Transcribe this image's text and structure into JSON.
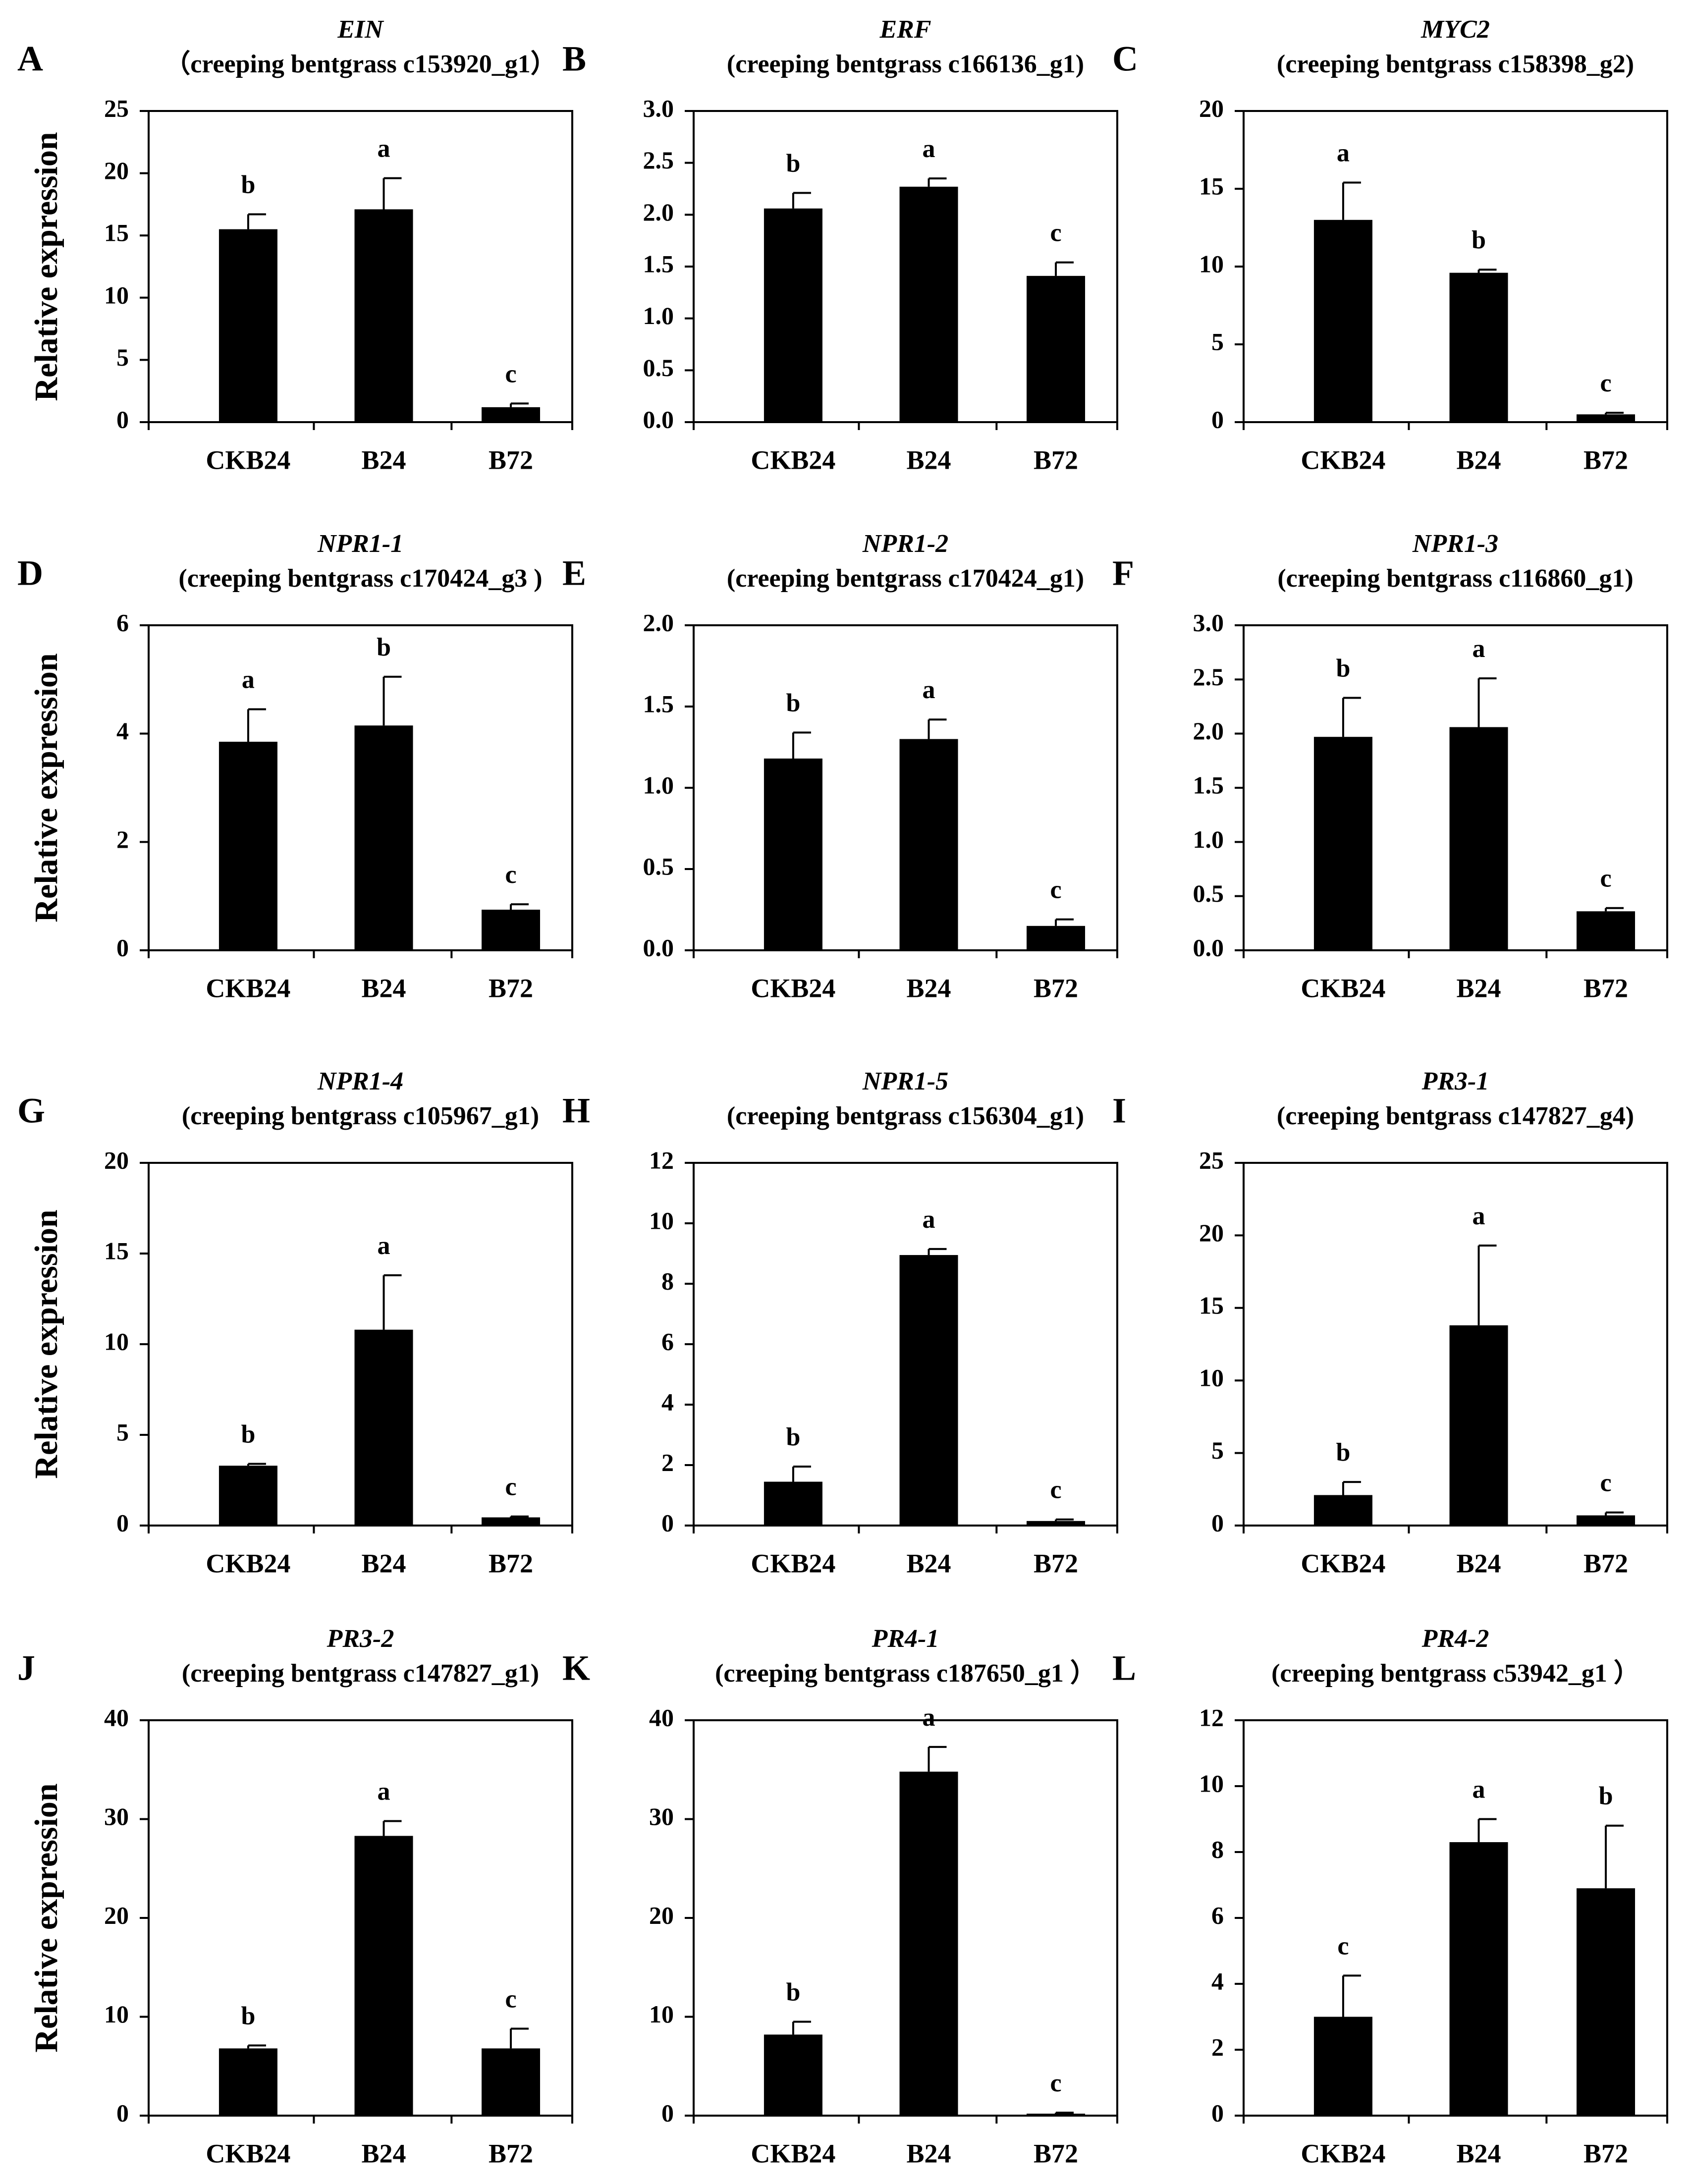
{
  "figure": {
    "ylabel": "Relative expression",
    "categories": [
      "CKB24",
      "B24",
      "B72"
    ]
  },
  "chart_data": [
    {
      "type": "bar",
      "panel": "A",
      "gene": "EIN",
      "title": "（creeping bentgrass c153920_g1）",
      "categories": [
        "CKB24",
        "B24",
        "B72"
      ],
      "values": [
        15.5,
        17.1,
        1.2
      ],
      "errors": [
        1.2,
        2.5,
        0.3
      ],
      "letters": [
        "b",
        "a",
        "c"
      ],
      "ylim": [
        0,
        25
      ],
      "yticks": [
        0,
        5,
        10,
        15,
        20,
        25
      ],
      "tick_format": "0"
    },
    {
      "type": "bar",
      "panel": "B",
      "gene": "ERF",
      "title": "(creeping bentgrass c166136_g1)",
      "categories": [
        "CKB24",
        "B24",
        "B72"
      ],
      "values": [
        2.06,
        2.27,
        1.41
      ],
      "errors": [
        0.15,
        0.08,
        0.13
      ],
      "letters": [
        "b",
        "a",
        "c"
      ],
      "ylim": [
        0,
        3
      ],
      "yticks": [
        0,
        0.5,
        1.0,
        1.5,
        2.0,
        2.5,
        3.0
      ],
      "tick_format": "0.0"
    },
    {
      "type": "bar",
      "panel": "C",
      "gene": "MYC2",
      "title": "(creeping bentgrass c158398_g2)",
      "categories": [
        "CKB24",
        "B24",
        "B72"
      ],
      "values": [
        13.0,
        9.6,
        0.5
      ],
      "errors": [
        2.4,
        0.2,
        0.1
      ],
      "letters": [
        "a",
        "b",
        "c"
      ],
      "ylim": [
        0,
        20
      ],
      "yticks": [
        0,
        5,
        10,
        15,
        20
      ],
      "tick_format": "0"
    },
    {
      "type": "bar",
      "panel": "D",
      "gene": "NPR1-1",
      "title": "(creeping bentgrass c170424_g3 )",
      "categories": [
        "CKB24",
        "B24",
        "B72"
      ],
      "values": [
        3.85,
        4.15,
        0.75
      ],
      "errors": [
        0.6,
        0.9,
        0.1
      ],
      "letters": [
        "a",
        "b",
        "c"
      ],
      "ylim": [
        0,
        6
      ],
      "yticks": [
        0,
        2,
        4,
        6
      ],
      "tick_format": "0"
    },
    {
      "type": "bar",
      "panel": "E",
      "gene": "NPR1-2",
      "title": "(creeping bentgrass c170424_g1)",
      "categories": [
        "CKB24",
        "B24",
        "B72"
      ],
      "values": [
        1.18,
        1.3,
        0.15
      ],
      "errors": [
        0.16,
        0.12,
        0.04
      ],
      "letters": [
        "b",
        "a",
        "c"
      ],
      "ylim": [
        0,
        2
      ],
      "yticks": [
        0,
        0.5,
        1.0,
        1.5,
        2.0
      ],
      "tick_format": "0.0"
    },
    {
      "type": "bar",
      "panel": "F",
      "gene": "NPR1-3",
      "title": "(creeping bentgrass c116860_g1)",
      "categories": [
        "CKB24",
        "B24",
        "B72"
      ],
      "values": [
        1.97,
        2.06,
        0.36
      ],
      "errors": [
        0.36,
        0.45,
        0.03
      ],
      "letters": [
        "b",
        "a",
        "c"
      ],
      "ylim": [
        0,
        3
      ],
      "yticks": [
        0,
        0.5,
        1.0,
        1.5,
        2.0,
        2.5,
        3.0
      ],
      "tick_format": "0.0"
    },
    {
      "type": "bar",
      "panel": "G",
      "gene": "NPR1-4",
      "title": "(creeping bentgrass c105967_g1)",
      "categories": [
        "CKB24",
        "B24",
        "B72"
      ],
      "values": [
        3.3,
        10.8,
        0.45
      ],
      "errors": [
        0.1,
        3.0,
        0.05
      ],
      "letters": [
        "b",
        "a",
        "c"
      ],
      "ylim": [
        0,
        20
      ],
      "yticks": [
        0,
        5,
        10,
        15,
        20
      ],
      "tick_format": "0"
    },
    {
      "type": "bar",
      "panel": "H",
      "gene": "NPR1-5",
      "title": "(creeping bentgrass c156304_g1)",
      "categories": [
        "CKB24",
        "B24",
        "B72"
      ],
      "values": [
        1.45,
        8.95,
        0.15
      ],
      "errors": [
        0.5,
        0.2,
        0.05
      ],
      "letters": [
        "b",
        "a",
        "c"
      ],
      "ylim": [
        0,
        12
      ],
      "yticks": [
        0,
        2,
        4,
        6,
        8,
        10,
        12
      ],
      "tick_format": "0"
    },
    {
      "type": "bar",
      "panel": "I",
      "gene": "PR3-1",
      "title": "(creeping bentgrass c147827_g4)",
      "categories": [
        "CKB24",
        "B24",
        "B72"
      ],
      "values": [
        2.1,
        13.8,
        0.7
      ],
      "errors": [
        0.9,
        5.5,
        0.2
      ],
      "letters": [
        "b",
        "a",
        "c"
      ],
      "ylim": [
        0,
        25
      ],
      "yticks": [
        0,
        5,
        10,
        15,
        20,
        25
      ],
      "tick_format": "0"
    },
    {
      "type": "bar",
      "panel": "J",
      "gene": "PR3-2",
      "title": "(creeping bentgrass c147827_g1)",
      "categories": [
        "CKB24",
        "B24",
        "B72"
      ],
      "values": [
        6.8,
        28.3,
        6.8
      ],
      "errors": [
        0.3,
        1.5,
        2.0
      ],
      "letters": [
        "b",
        "a",
        "c"
      ],
      "ylim": [
        0,
        40
      ],
      "yticks": [
        0,
        10,
        20,
        30,
        40
      ],
      "tick_format": "0"
    },
    {
      "type": "bar",
      "panel": "K",
      "gene": "PR4-1",
      "title": "(creeping bentgrass c187650_g1 ）",
      "categories": [
        "CKB24",
        "B24",
        "B72"
      ],
      "values": [
        8.2,
        34.8,
        0.2
      ],
      "errors": [
        1.3,
        2.5,
        0.1
      ],
      "letters": [
        "b",
        "a",
        "c"
      ],
      "ylim": [
        0,
        40
      ],
      "yticks": [
        0,
        10,
        20,
        30,
        40
      ],
      "tick_format": "0"
    },
    {
      "type": "bar",
      "panel": "L",
      "gene": "PR4-2",
      "title": "(creeping bentgrass c53942_g1 ）",
      "categories": [
        "CKB24",
        "B24",
        "B72"
      ],
      "values": [
        3.0,
        8.3,
        6.9
      ],
      "errors": [
        1.25,
        0.7,
        1.9
      ],
      "letters": [
        "c",
        "a",
        "b"
      ],
      "ylim": [
        0,
        12
      ],
      "yticks": [
        0,
        2,
        4,
        6,
        8,
        10,
        12
      ],
      "tick_format": "0"
    }
  ]
}
